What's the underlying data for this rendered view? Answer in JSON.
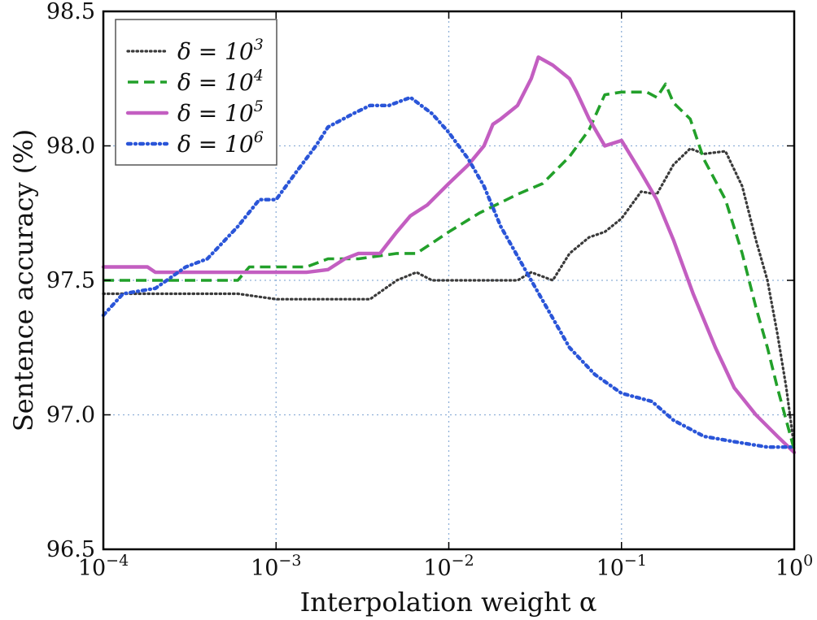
{
  "chart_data": {
    "type": "line",
    "xlabel": "Interpolation weight α",
    "ylabel": "Sentence accuracy (%)",
    "xscale": "log",
    "xlim": [
      0.0001,
      1
    ],
    "ylim": [
      96.5,
      98.5
    ],
    "x_ticks": [
      {
        "value": 0.0001,
        "base": "10",
        "exp": "−4"
      },
      {
        "value": 0.001,
        "base": "10",
        "exp": "−3"
      },
      {
        "value": 0.01,
        "base": "10",
        "exp": "−2"
      },
      {
        "value": 0.1,
        "base": "10",
        "exp": "−1"
      },
      {
        "value": 1,
        "base": "10",
        "exp": "0"
      }
    ],
    "y_ticks": [
      {
        "value": 96.5,
        "label": "96.5"
      },
      {
        "value": 97.0,
        "label": "97.0"
      },
      {
        "value": 97.5,
        "label": "97.5"
      },
      {
        "value": 98.0,
        "label": "98.0"
      },
      {
        "value": 98.5,
        "label": "98.5"
      }
    ],
    "grid": true,
    "legend_position": "top-left",
    "series": [
      {
        "name": "δ = 10³",
        "legend_prefix": "δ = 10",
        "legend_exp": "3",
        "color": "#3a3a3a",
        "style": "dotted",
        "points": [
          [
            0.0001,
            97.45
          ],
          [
            0.0003,
            97.45
          ],
          [
            0.0006,
            97.45
          ],
          [
            0.001,
            97.43
          ],
          [
            0.002,
            97.43
          ],
          [
            0.0035,
            97.43
          ],
          [
            0.005,
            97.5
          ],
          [
            0.0065,
            97.53
          ],
          [
            0.008,
            97.5
          ],
          [
            0.01,
            97.5
          ],
          [
            0.015,
            97.5
          ],
          [
            0.025,
            97.5
          ],
          [
            0.03,
            97.53
          ],
          [
            0.04,
            97.5
          ],
          [
            0.05,
            97.6
          ],
          [
            0.065,
            97.66
          ],
          [
            0.08,
            97.68
          ],
          [
            0.1,
            97.73
          ],
          [
            0.13,
            97.83
          ],
          [
            0.16,
            97.82
          ],
          [
            0.2,
            97.93
          ],
          [
            0.25,
            97.99
          ],
          [
            0.3,
            97.97
          ],
          [
            0.4,
            97.98
          ],
          [
            0.5,
            97.85
          ],
          [
            0.6,
            97.65
          ],
          [
            0.7,
            97.5
          ],
          [
            0.8,
            97.3
          ],
          [
            0.9,
            97.1
          ],
          [
            1.0,
            96.88
          ]
        ]
      },
      {
        "name": "δ = 10⁴",
        "legend_prefix": "δ = 10",
        "legend_exp": "4",
        "color": "#22a02a",
        "style": "dashed",
        "points": [
          [
            0.0001,
            97.5
          ],
          [
            0.0006,
            97.5
          ],
          [
            0.0007,
            97.55
          ],
          [
            0.0015,
            97.55
          ],
          [
            0.002,
            97.58
          ],
          [
            0.003,
            97.58
          ],
          [
            0.005,
            97.6
          ],
          [
            0.0065,
            97.6
          ],
          [
            0.01,
            97.68
          ],
          [
            0.015,
            97.75
          ],
          [
            0.025,
            97.82
          ],
          [
            0.035,
            97.86
          ],
          [
            0.05,
            97.96
          ],
          [
            0.065,
            98.06
          ],
          [
            0.08,
            98.19
          ],
          [
            0.1,
            98.2
          ],
          [
            0.14,
            98.2
          ],
          [
            0.16,
            98.18
          ],
          [
            0.18,
            98.23
          ],
          [
            0.2,
            98.16
          ],
          [
            0.25,
            98.1
          ],
          [
            0.3,
            97.95
          ],
          [
            0.4,
            97.8
          ],
          [
            0.5,
            97.6
          ],
          [
            0.6,
            97.4
          ],
          [
            0.7,
            97.25
          ],
          [
            0.8,
            97.1
          ],
          [
            1.0,
            96.87
          ]
        ]
      },
      {
        "name": "δ = 10⁵",
        "legend_prefix": "δ = 10",
        "legend_exp": "5",
        "color": "#c35ec1",
        "style": "solid",
        "points": [
          [
            0.0001,
            97.55
          ],
          [
            0.00018,
            97.55
          ],
          [
            0.0002,
            97.53
          ],
          [
            0.0005,
            97.53
          ],
          [
            0.001,
            97.53
          ],
          [
            0.0015,
            97.53
          ],
          [
            0.002,
            97.54
          ],
          [
            0.0025,
            97.58
          ],
          [
            0.003,
            97.6
          ],
          [
            0.004,
            97.6
          ],
          [
            0.005,
            97.68
          ],
          [
            0.006,
            97.74
          ],
          [
            0.0075,
            97.78
          ],
          [
            0.01,
            97.86
          ],
          [
            0.013,
            97.93
          ],
          [
            0.016,
            98.0
          ],
          [
            0.018,
            98.08
          ],
          [
            0.02,
            98.1
          ],
          [
            0.025,
            98.15
          ],
          [
            0.03,
            98.25
          ],
          [
            0.033,
            98.33
          ],
          [
            0.04,
            98.3
          ],
          [
            0.05,
            98.25
          ],
          [
            0.055,
            98.2
          ],
          [
            0.065,
            98.1
          ],
          [
            0.08,
            98.0
          ],
          [
            0.1,
            98.02
          ],
          [
            0.13,
            97.9
          ],
          [
            0.16,
            97.8
          ],
          [
            0.2,
            97.65
          ],
          [
            0.26,
            97.45
          ],
          [
            0.35,
            97.25
          ],
          [
            0.45,
            97.1
          ],
          [
            0.6,
            97.0
          ],
          [
            0.8,
            96.92
          ],
          [
            1.0,
            96.86
          ]
        ]
      },
      {
        "name": "δ = 10⁶",
        "legend_prefix": "δ = 10",
        "legend_exp": "6",
        "color": "#2a55d8",
        "style": "dashdot",
        "points": [
          [
            0.0001,
            97.37
          ],
          [
            0.00013,
            97.45
          ],
          [
            0.0002,
            97.47
          ],
          [
            0.0003,
            97.55
          ],
          [
            0.0004,
            97.58
          ],
          [
            0.0006,
            97.7
          ],
          [
            0.0008,
            97.8
          ],
          [
            0.001,
            97.8
          ],
          [
            0.0013,
            97.9
          ],
          [
            0.0017,
            98.0
          ],
          [
            0.002,
            98.07
          ],
          [
            0.0028,
            98.12
          ],
          [
            0.0035,
            98.15
          ],
          [
            0.0045,
            98.15
          ],
          [
            0.006,
            98.18
          ],
          [
            0.008,
            98.12
          ],
          [
            0.01,
            98.05
          ],
          [
            0.013,
            97.95
          ],
          [
            0.016,
            97.85
          ],
          [
            0.02,
            97.7
          ],
          [
            0.03,
            97.5
          ],
          [
            0.05,
            97.25
          ],
          [
            0.07,
            97.15
          ],
          [
            0.1,
            97.08
          ],
          [
            0.15,
            97.05
          ],
          [
            0.2,
            96.98
          ],
          [
            0.3,
            96.92
          ],
          [
            0.45,
            96.9
          ],
          [
            0.7,
            96.88
          ],
          [
            1.0,
            96.88
          ]
        ]
      }
    ]
  }
}
